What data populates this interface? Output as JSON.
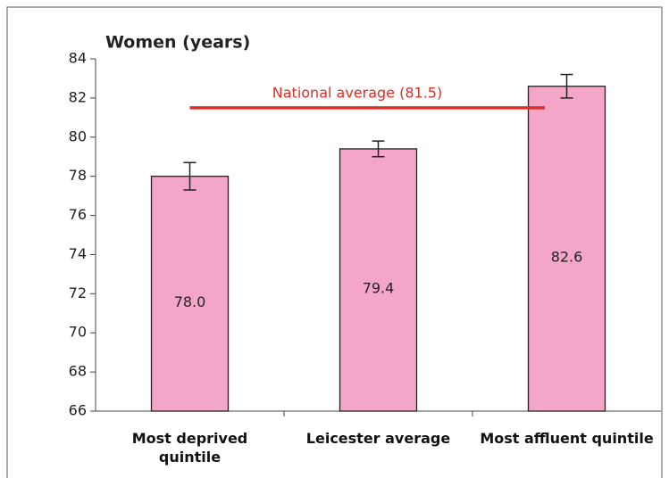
{
  "chart_data": {
    "type": "bar",
    "title": "Women (years)",
    "categories": [
      "Most deprived quintile",
      "Leicester average",
      "Most affluent quintile"
    ],
    "values": [
      78,
      79.4,
      82.6
    ],
    "value_labels": [
      "78.0",
      "79.4",
      "82.6"
    ],
    "errors": [
      0.7,
      0.4,
      0.6
    ],
    "color": "#f4a6c9",
    "ylim": [
      66,
      84
    ],
    "yticks": [
      66,
      68,
      70,
      72,
      74,
      76,
      78,
      80,
      82,
      84
    ],
    "reference": {
      "label": "National average  (81.5)",
      "value": 81.5,
      "color": "#d9302a"
    }
  }
}
